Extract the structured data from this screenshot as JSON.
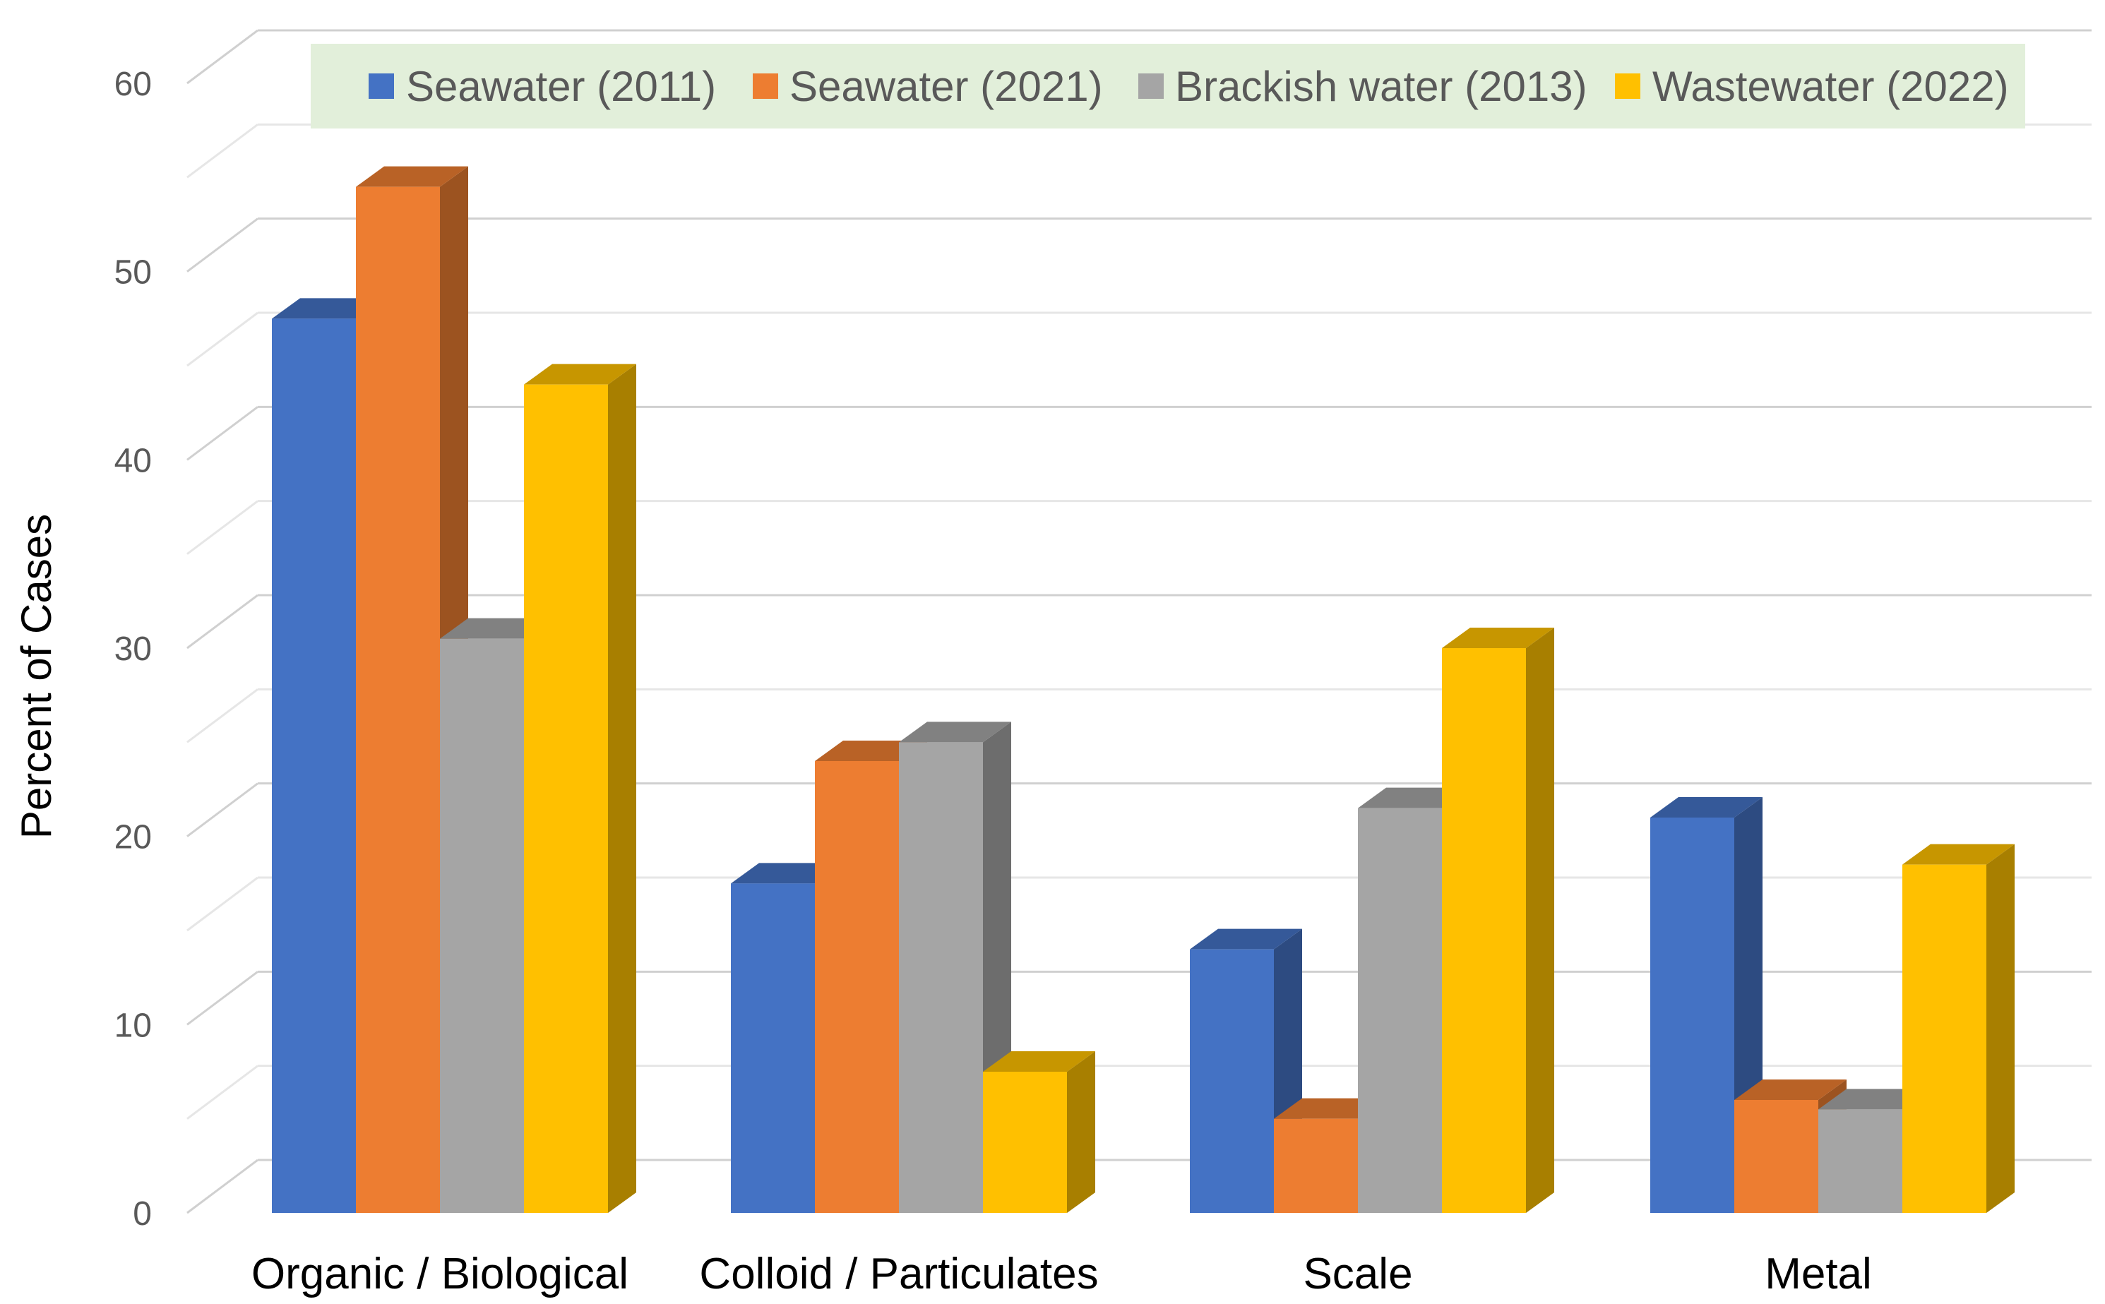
{
  "chart_data": {
    "type": "bar",
    "style": "3d-clustered-column",
    "categories": [
      "Organic / Biological",
      "Colloid / Particulates",
      "Scale",
      "Metal"
    ],
    "series": [
      {
        "name": "Seawater (2011)",
        "color": "#4472C4",
        "values": [
          47.5,
          17.5,
          14,
          21
        ]
      },
      {
        "name": "Seawater (2021)",
        "color": "#ED7D31",
        "values": [
          54.5,
          24,
          5,
          6
        ]
      },
      {
        "name": "Brackish water (2013)",
        "color": "#A5A5A5",
        "values": [
          30.5,
          25,
          21.5,
          5.5
        ]
      },
      {
        "name": "Wastewater (2022)",
        "color": "#FFC000",
        "values": [
          44,
          7.5,
          30,
          18.5
        ]
      }
    ],
    "ylabel": "Percent of Cases",
    "xlabel": "",
    "ylim": [
      0,
      60
    ],
    "yticks": [
      "0",
      "10",
      "20",
      "30",
      "40",
      "50",
      "60"
    ],
    "grid": true,
    "legend_position": "top",
    "legend_background": "#E2EFDA"
  }
}
